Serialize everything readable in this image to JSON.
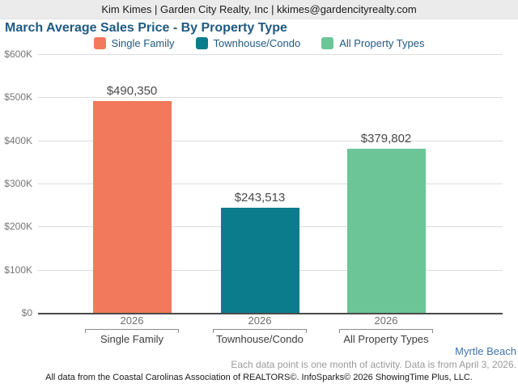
{
  "header": {
    "contact_line": "Kim Kimes | Garden City Realty, Inc | kkimes@gardencityrealty.com"
  },
  "title": "March Average Sales Price - By Property Type",
  "legend": [
    {
      "label": "Single Family",
      "color": "#F2795B"
    },
    {
      "label": "Townhouse/Condo",
      "color": "#0A7C8C"
    },
    {
      "label": "All Property Types",
      "color": "#6BC597"
    }
  ],
  "chart_data": {
    "type": "bar",
    "title": "March Average Sales Price - By Property Type",
    "categories": [
      "Single Family",
      "Townhouse/Condo",
      "All Property Types"
    ],
    "x_year_labels": [
      "2026",
      "2026",
      "2026"
    ],
    "values": [
      490350,
      243513,
      379802
    ],
    "value_labels": [
      "$490,350",
      "$243,513",
      "$379,802"
    ],
    "series_colors": [
      "#F2795B",
      "#0A7C8C",
      "#6BC597"
    ],
    "ylabel": "",
    "ylim": [
      0,
      600000
    ],
    "ytick_labels": [
      "$600K",
      "$500K",
      "$400K",
      "$300K",
      "$200K",
      "$100K",
      "$0"
    ],
    "grid": true,
    "legend_position": "top"
  },
  "footer": {
    "market_name": "Myrtle Beach",
    "note": "Each data point is one month of activity. Data is from April 3, 2026.",
    "attribution": "All data from the Coastal Carolinas Association of REALTORS©. InfoSparks© 2026 ShowingTime Plus, LLC."
  }
}
